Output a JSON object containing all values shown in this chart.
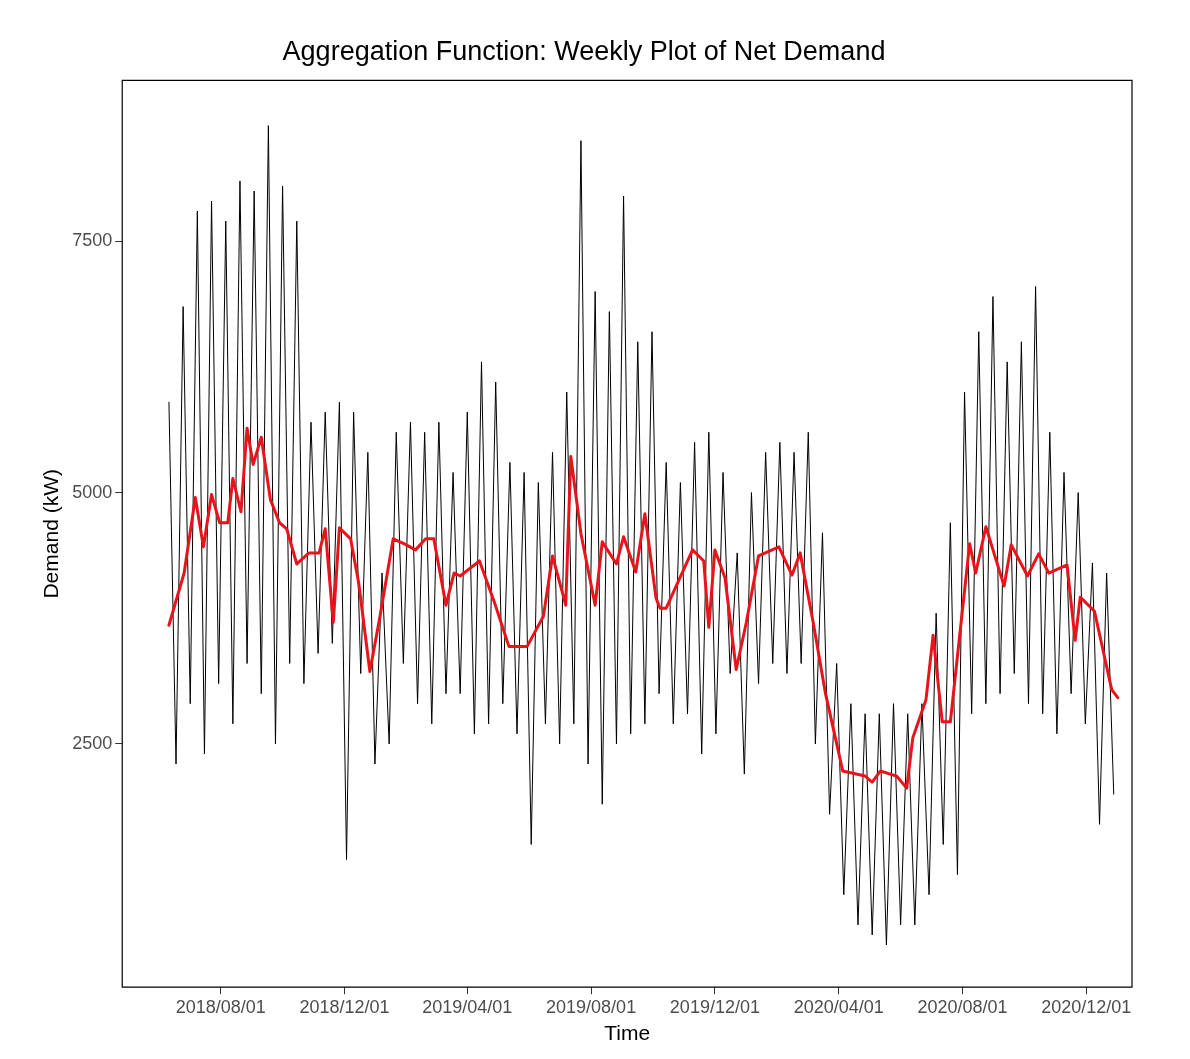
{
  "chart_data": {
    "type": "line",
    "title": "Aggregation Function: Weekly Plot of Net Demand",
    "xlabel": "Time",
    "ylabel": "Demand (kW)",
    "xlim": [
      "2018-04-26",
      "2021-01-15"
    ],
    "xticks": [
      {
        "value": "2018-08-01",
        "label": "2018/08/01"
      },
      {
        "value": "2018-12-01",
        "label": "2018/12/01"
      },
      {
        "value": "2019-04-01",
        "label": "2019/04/01"
      },
      {
        "value": "2019-08-01",
        "label": "2019/08/01"
      },
      {
        "value": "2019-12-01",
        "label": "2019/12/01"
      },
      {
        "value": "2020-04-01",
        "label": "2020/04/01"
      },
      {
        "value": "2020-08-01",
        "label": "2020/08/01"
      },
      {
        "value": "2020-12-01",
        "label": "2020/12/01"
      }
    ],
    "ylim": [
      80,
      9100
    ],
    "yticks": [
      2500,
      5000,
      7500
    ],
    "grid": false,
    "legend": false,
    "marker": "none",
    "line_style": "solid",
    "series": [
      {
        "color": "#000000",
        "x": [
          "2018-06-11",
          "2018-06-18",
          "2018-06-25",
          "2018-07-02",
          "2018-07-09",
          "2018-07-16",
          "2018-07-23",
          "2018-07-30",
          "2018-08-06",
          "2018-08-13",
          "2018-08-20",
          "2018-08-27",
          "2018-09-03",
          "2018-09-10",
          "2018-09-17",
          "2018-09-24",
          "2018-10-01",
          "2018-10-08",
          "2018-10-15",
          "2018-10-22",
          "2018-10-29",
          "2018-11-05",
          "2018-11-12",
          "2018-11-19",
          "2018-11-26",
          "2018-12-03",
          "2018-12-10",
          "2018-12-17",
          "2018-12-24",
          "2018-12-31",
          "2019-01-07",
          "2019-01-14",
          "2019-01-21",
          "2019-01-28",
          "2019-02-04",
          "2019-02-11",
          "2019-02-18",
          "2019-02-25",
          "2019-03-04",
          "2019-03-11",
          "2019-03-18",
          "2019-03-25",
          "2019-04-01",
          "2019-04-08",
          "2019-04-15",
          "2019-04-22",
          "2019-04-29",
          "2019-05-06",
          "2019-05-13",
          "2019-05-20",
          "2019-05-27",
          "2019-06-03",
          "2019-06-10",
          "2019-06-17",
          "2019-06-24",
          "2019-07-01",
          "2019-07-08",
          "2019-07-15",
          "2019-07-22",
          "2019-07-29",
          "2019-08-05",
          "2019-08-12",
          "2019-08-19",
          "2019-08-26",
          "2019-09-02",
          "2019-09-09",
          "2019-09-16",
          "2019-09-23",
          "2019-09-30",
          "2019-10-07",
          "2019-10-14",
          "2019-10-21",
          "2019-10-28",
          "2019-11-04",
          "2019-11-11",
          "2019-11-18",
          "2019-11-25",
          "2019-12-02",
          "2019-12-09",
          "2019-12-16",
          "2019-12-23",
          "2019-12-30",
          "2020-01-06",
          "2020-01-13",
          "2020-01-20",
          "2020-01-27",
          "2020-02-03",
          "2020-02-10",
          "2020-02-17",
          "2020-02-24",
          "2020-03-02",
          "2020-03-09",
          "2020-03-16",
          "2020-03-23",
          "2020-03-30",
          "2020-04-06",
          "2020-04-13",
          "2020-04-20",
          "2020-04-27",
          "2020-05-04",
          "2020-05-11",
          "2020-05-18",
          "2020-05-25",
          "2020-06-01",
          "2020-06-08",
          "2020-06-15",
          "2020-06-22",
          "2020-06-29",
          "2020-07-06",
          "2020-07-13",
          "2020-07-20",
          "2020-07-27",
          "2020-08-03",
          "2020-08-10",
          "2020-08-17",
          "2020-08-24",
          "2020-08-31",
          "2020-09-07",
          "2020-09-14",
          "2020-09-21",
          "2020-09-28",
          "2020-10-05",
          "2020-10-12",
          "2020-10-19",
          "2020-10-26",
          "2020-11-02",
          "2020-11-09",
          "2020-11-16",
          "2020-11-23",
          "2020-11-30",
          "2020-12-07",
          "2020-12-14",
          "2020-12-21",
          "2020-12-28"
        ],
        "values": [
          5900,
          2300,
          6850,
          2900,
          7800,
          2400,
          7900,
          3100,
          7700,
          2700,
          8100,
          3300,
          8000,
          3000,
          8650,
          2500,
          8050,
          3300,
          7700,
          3100,
          5700,
          3400,
          5800,
          3500,
          5900,
          1350,
          5800,
          3200,
          5400,
          2300,
          4200,
          2500,
          5600,
          3300,
          5700,
          2900,
          5600,
          2700,
          5700,
          3000,
          5200,
          3000,
          5800,
          2600,
          6300,
          2700,
          6100,
          2900,
          5300,
          2600,
          5200,
          1500,
          5100,
          2700,
          5400,
          2500,
          6000,
          2700,
          8500,
          2300,
          7000,
          1900,
          6800,
          2500,
          7950,
          2600,
          6500,
          2700,
          6600,
          3000,
          5300,
          2700,
          5100,
          2800,
          5500,
          2400,
          5600,
          2600,
          5200,
          3200,
          4400,
          2200,
          5000,
          3100,
          5400,
          3300,
          5500,
          3200,
          5400,
          3300,
          5600,
          2500,
          4600,
          1800,
          3300,
          1000,
          2900,
          700,
          2800,
          600,
          2800,
          500,
          2900,
          700,
          2800,
          700,
          2900,
          1000,
          3800,
          1500,
          4700,
          1200,
          6000,
          2800,
          6600,
          2900,
          6950,
          3000,
          6300,
          3200,
          6500,
          2900,
          7050,
          2800,
          5600,
          2600,
          5200,
          3000,
          5000,
          2700,
          4300,
          1700,
          4200,
          2000
        ]
      },
      {
        "color": "#e8141c",
        "x": [
          "2018-06-11",
          "2018-06-26",
          "2018-07-07",
          "2018-07-15",
          "2018-07-23",
          "2018-07-31",
          "2018-08-08",
          "2018-08-13",
          "2018-08-21",
          "2018-08-27",
          "2018-09-02",
          "2018-09-10",
          "2018-09-19",
          "2018-09-28",
          "2018-10-05",
          "2018-10-15",
          "2018-10-27",
          "2018-11-06",
          "2018-11-12",
          "2018-11-20",
          "2018-11-26",
          "2018-12-07",
          "2018-12-15",
          "2018-12-26",
          "2019-01-05",
          "2019-01-18",
          "2019-01-29",
          "2019-02-09",
          "2019-02-19",
          "2019-02-27",
          "2019-03-11",
          "2019-03-19",
          "2019-03-25",
          "2019-04-13",
          "2019-04-27",
          "2019-05-12",
          "2019-05-30",
          "2019-06-15",
          "2019-06-24",
          "2019-07-07",
          "2019-07-12",
          "2019-07-22",
          "2019-08-05",
          "2019-08-12",
          "2019-08-26",
          "2019-09-02",
          "2019-09-14",
          "2019-09-23",
          "2019-10-04",
          "2019-10-08",
          "2019-10-14",
          "2019-11-09",
          "2019-11-20",
          "2019-11-25",
          "2019-12-01",
          "2019-12-11",
          "2019-12-22",
          "2020-01-01",
          "2020-01-13",
          "2020-02-02",
          "2020-02-15",
          "2020-02-23",
          "2020-03-07",
          "2020-03-19",
          "2020-04-05",
          "2020-04-27",
          "2020-05-04",
          "2020-05-12",
          "2020-05-28",
          "2020-06-07",
          "2020-06-13",
          "2020-06-26",
          "2020-07-03",
          "2020-07-12",
          "2020-07-20",
          "2020-08-08",
          "2020-08-14",
          "2020-08-24",
          "2020-09-11",
          "2020-09-18",
          "2020-10-04",
          "2020-10-15",
          "2020-10-25",
          "2020-11-12",
          "2020-11-20",
          "2020-11-25",
          "2020-12-09",
          "2020-12-26",
          "2021-01-01"
        ],
        "values": [
          3680,
          4200,
          4950,
          4460,
          4980,
          4700,
          4700,
          5140,
          4810,
          5640,
          5280,
          5550,
          4930,
          4700,
          4640,
          4290,
          4400,
          4400,
          4640,
          3710,
          4650,
          4540,
          4100,
          3220,
          3770,
          4540,
          4490,
          4430,
          4540,
          4540,
          3880,
          4200,
          4170,
          4320,
          3930,
          3470,
          3470,
          3770,
          4370,
          3880,
          5360,
          4590,
          3880,
          4510,
          4290,
          4560,
          4210,
          4790,
          3950,
          3850,
          3850,
          4430,
          4320,
          3660,
          4430,
          4150,
          3240,
          3710,
          4370,
          4460,
          4180,
          4400,
          3700,
          3000,
          2230,
          2180,
          2120,
          2230,
          2180,
          2060,
          2560,
          2940,
          3580,
          2720,
          2720,
          4490,
          4200,
          4660,
          4070,
          4480,
          4170,
          4390,
          4200,
          4280,
          3530,
          3960,
          3820,
          3040,
          2960
        ]
      }
    ]
  }
}
